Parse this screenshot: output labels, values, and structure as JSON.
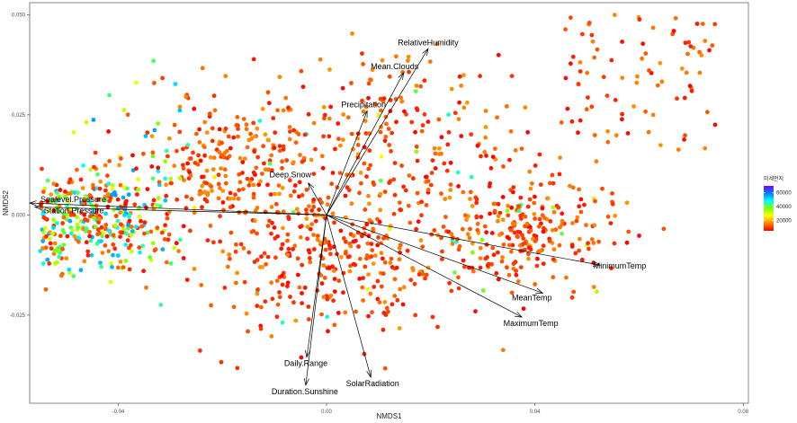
{
  "chart_data": {
    "type": "scatter",
    "title": "",
    "xlabel": "NMDS1",
    "ylabel": "NMDS2",
    "xlim": [
      -0.057,
      0.081
    ],
    "ylim": [
      -0.047,
      0.053
    ],
    "x_ticks": [
      {
        "value": -0.04,
        "label": "-0.04"
      },
      {
        "value": 0.0,
        "label": "0.00"
      },
      {
        "value": 0.04,
        "label": "0.04"
      },
      {
        "value": 0.08,
        "label": "0.08"
      }
    ],
    "y_ticks": [
      {
        "value": 0.05,
        "label": "0.050"
      },
      {
        "value": 0.025,
        "label": "0.025"
      },
      {
        "value": 0.0,
        "label": "0.000"
      },
      {
        "value": -0.025,
        "label": "-0.025"
      }
    ],
    "grid": false,
    "legend": {
      "title": "미세먼지",
      "placement": "right",
      "scale_min": 5000,
      "scale_max": 70000,
      "ticks": [
        {
          "value": 60000,
          "label": "60000"
        },
        {
          "value": 40000,
          "label": "40000"
        },
        {
          "value": 20000,
          "label": "20000"
        }
      ],
      "colors": [
        "#ff0000",
        "#ff8000",
        "#ffff00",
        "#80ff00",
        "#00ffff",
        "#0080ff",
        "#8000ff"
      ]
    },
    "vectors": [
      {
        "name": "RelativeHumidity",
        "x": 0.0195,
        "y": 0.0415
      },
      {
        "name": "Mean.Clouds",
        "x": 0.0148,
        "y": 0.0355
      },
      {
        "name": "Precipitation",
        "x": 0.0078,
        "y": 0.026
      },
      {
        "name": "Deep.Snow",
        "x": -0.0035,
        "y": 0.008
      },
      {
        "name": "Sealevel.Pressure",
        "x": -0.057,
        "y": 0.003
      },
      {
        "name": "Station.Pressure",
        "x": -0.056,
        "y": 0.002
      },
      {
        "name": "MinimumTemp",
        "x": 0.0525,
        "y": -0.0125
      },
      {
        "name": "MeanTemp",
        "x": 0.0415,
        "y": -0.0195
      },
      {
        "name": "MaximumTemp",
        "x": 0.0375,
        "y": -0.0255
      },
      {
        "name": "Daily.Range",
        "x": -0.0038,
        "y": -0.0355
      },
      {
        "name": "Duration.Sunshine",
        "x": -0.004,
        "y": -0.0425
      },
      {
        "name": "SolarRadiation",
        "x": 0.0085,
        "y": -0.0405
      }
    ],
    "point_count": 1500
  }
}
